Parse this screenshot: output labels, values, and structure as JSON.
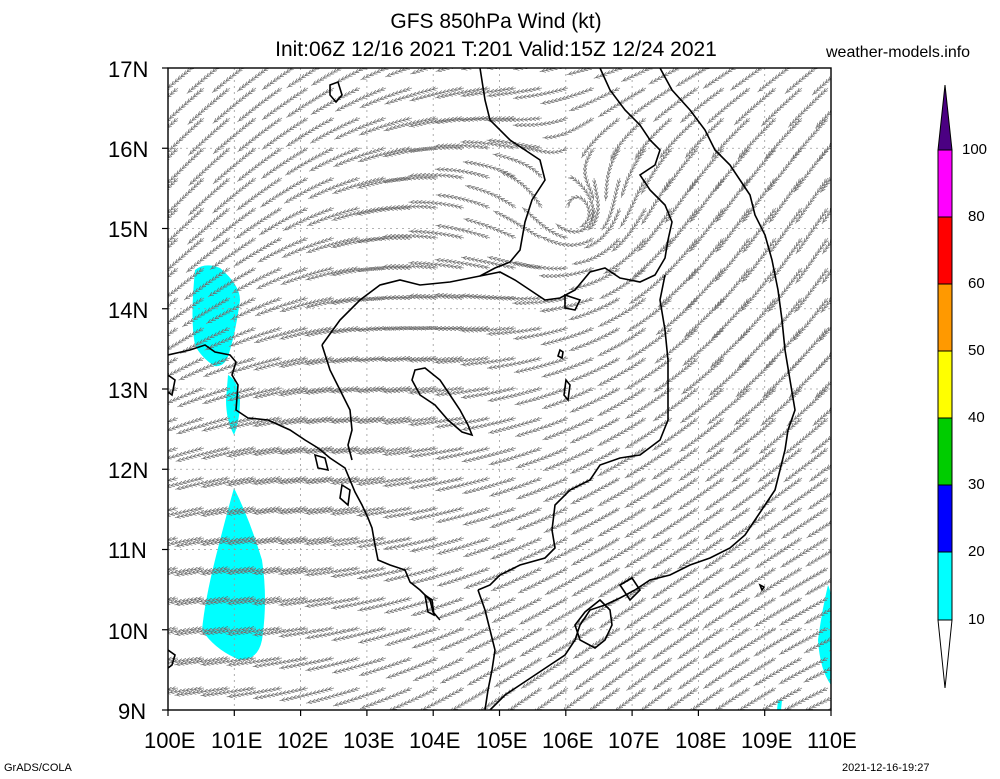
{
  "header": {
    "title_line1": "GFS 850hPa Wind (kt)",
    "title_line2": "Init:06Z 12/16 2021 T:201 Valid:15Z 12/24 2021",
    "site": "weather-models.info"
  },
  "map": {
    "lat_labels": [
      "17N",
      "16N",
      "15N",
      "14N",
      "13N",
      "12N",
      "11N",
      "10N",
      "9N"
    ],
    "lon_labels": [
      "100E",
      "101E",
      "102E",
      "103E",
      "104E",
      "105E",
      "106E",
      "107E",
      "108E",
      "109E",
      "110E"
    ],
    "extent": {
      "lon_min": 100,
      "lon_max": 110,
      "lat_min": 9,
      "lat_max": 17
    }
  },
  "colorbar": {
    "labels": [
      "100",
      "80",
      "60",
      "50",
      "40",
      "30",
      "20",
      "10"
    ],
    "colors": {
      "purple": "#4b0082",
      "magenta": "#ff00ff",
      "red": "#ff0000",
      "orange": "#ff9900",
      "yellow": "#ffff00",
      "green": "#00cc00",
      "blue": "#0000ff",
      "cyan": "#00ffff"
    }
  },
  "footer": {
    "left": "GrADS/COLA",
    "right": "2021-12-16-19:27"
  }
}
